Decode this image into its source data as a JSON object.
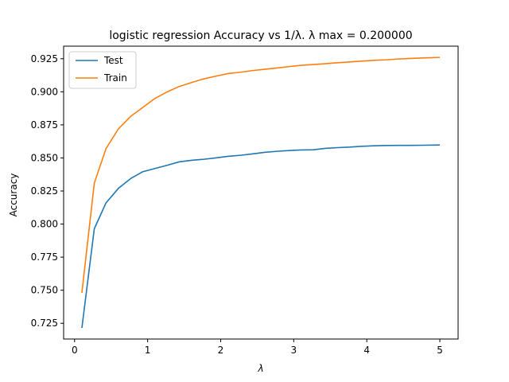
{
  "chart_data": {
    "type": "line",
    "title": "logistic regression Accuracy vs 1/λ. λ max = 0.200000",
    "xlabel": "λ",
    "ylabel": "Accuracy",
    "xlim": [
      -0.15,
      5.25
    ],
    "ylim": [
      0.7131,
      0.9345
    ],
    "xticks": [
      0,
      1,
      2,
      3,
      4,
      5
    ],
    "yticks": [
      0.725,
      0.75,
      0.775,
      0.8,
      0.825,
      0.85,
      0.875,
      0.9,
      0.925
    ],
    "ytick_labels": [
      "0.725",
      "0.750",
      "0.775",
      "0.800",
      "0.825",
      "0.850",
      "0.875",
      "0.900",
      "0.925"
    ],
    "grid": false,
    "legend_position": "upper-left",
    "x": [
      0.1,
      0.27,
      0.43,
      0.6,
      0.77,
      0.93,
      1.1,
      1.27,
      1.43,
      1.6,
      1.77,
      1.93,
      2.1,
      2.27,
      2.43,
      2.6,
      2.77,
      2.93,
      3.1,
      3.27,
      3.43,
      3.6,
      3.77,
      3.93,
      4.1,
      4.27,
      4.43,
      4.6,
      4.77,
      5.0
    ],
    "series": [
      {
        "name": "Test",
        "color": "#1f77b4",
        "values": [
          0.7215,
          0.7965,
          0.816,
          0.827,
          0.8345,
          0.8395,
          0.842,
          0.8445,
          0.847,
          0.8482,
          0.849,
          0.85,
          0.8512,
          0.852,
          0.853,
          0.8542,
          0.855,
          0.8556,
          0.856,
          0.8562,
          0.8572,
          0.8578,
          0.8582,
          0.8588,
          0.8592,
          0.8594,
          0.8595,
          0.8595,
          0.8596,
          0.8598
        ]
      },
      {
        "name": "Train",
        "color": "#ff7f0e",
        "values": [
          0.748,
          0.831,
          0.857,
          0.872,
          0.8815,
          0.888,
          0.895,
          0.9,
          0.904,
          0.907,
          0.9098,
          0.9118,
          0.9138,
          0.9148,
          0.916,
          0.917,
          0.918,
          0.919,
          0.92,
          0.9206,
          0.9212,
          0.922,
          0.9226,
          0.9232,
          0.9238,
          0.9242,
          0.9248,
          0.9252,
          0.9256,
          0.926
        ]
      }
    ]
  }
}
